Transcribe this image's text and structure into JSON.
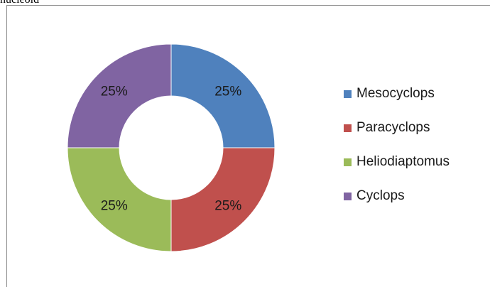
{
  "caption": "nucleoid",
  "chart_data": {
    "type": "pie",
    "donut": true,
    "title": "",
    "categories": [
      "Mesocyclops",
      "Paracyclops",
      "Heliodiaptomus",
      "Cyclops"
    ],
    "values": [
      25,
      25,
      25,
      25
    ],
    "data_labels": [
      "25%",
      "25%",
      "25%",
      "25%"
    ],
    "colors": [
      "#4f81bd",
      "#c0504d",
      "#9bbb59",
      "#8064a2"
    ],
    "legend_position": "right",
    "start": "top",
    "direction": "clockwise"
  }
}
